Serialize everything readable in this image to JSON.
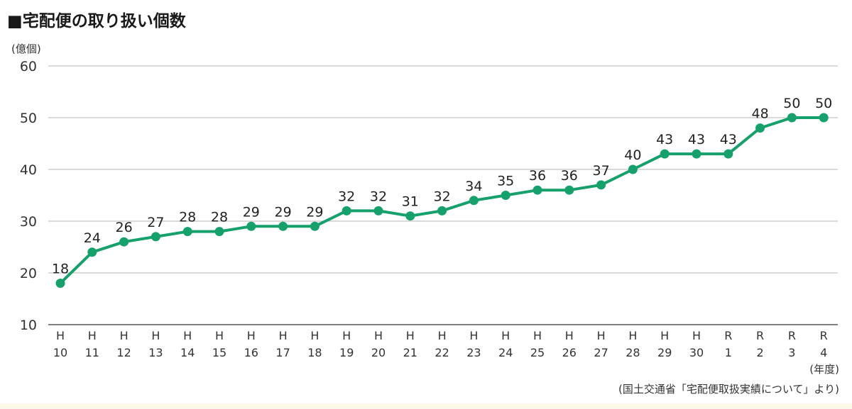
{
  "chart_data": {
    "type": "line",
    "title": "■宅配便の取り扱い個数",
    "ylabel": "(億個)",
    "xlabel": "(年度)",
    "source": "(国土交通省「宅配便取扱実績について」より)",
    "ylim": [
      10,
      60
    ],
    "yticks": [
      10,
      20,
      30,
      40,
      50,
      60
    ],
    "grid": true,
    "color": "#16a06b",
    "categories": [
      [
        "H",
        "10"
      ],
      [
        "H",
        "11"
      ],
      [
        "H",
        "12"
      ],
      [
        "H",
        "13"
      ],
      [
        "H",
        "14"
      ],
      [
        "H",
        "15"
      ],
      [
        "H",
        "16"
      ],
      [
        "H",
        "17"
      ],
      [
        "H",
        "18"
      ],
      [
        "H",
        "19"
      ],
      [
        "H",
        "20"
      ],
      [
        "H",
        "21"
      ],
      [
        "H",
        "22"
      ],
      [
        "H",
        "23"
      ],
      [
        "H",
        "24"
      ],
      [
        "H",
        "25"
      ],
      [
        "H",
        "26"
      ],
      [
        "H",
        "27"
      ],
      [
        "H",
        "28"
      ],
      [
        "H",
        "29"
      ],
      [
        "H",
        "30"
      ],
      [
        "R",
        "1"
      ],
      [
        "R",
        "2"
      ],
      [
        "R",
        "3"
      ],
      [
        "R",
        "4"
      ]
    ],
    "values": [
      18,
      24,
      26,
      27,
      28,
      28,
      29,
      29,
      29,
      32,
      32,
      31,
      32,
      34,
      35,
      36,
      36,
      37,
      40,
      43,
      43,
      43,
      48,
      50,
      50
    ]
  }
}
